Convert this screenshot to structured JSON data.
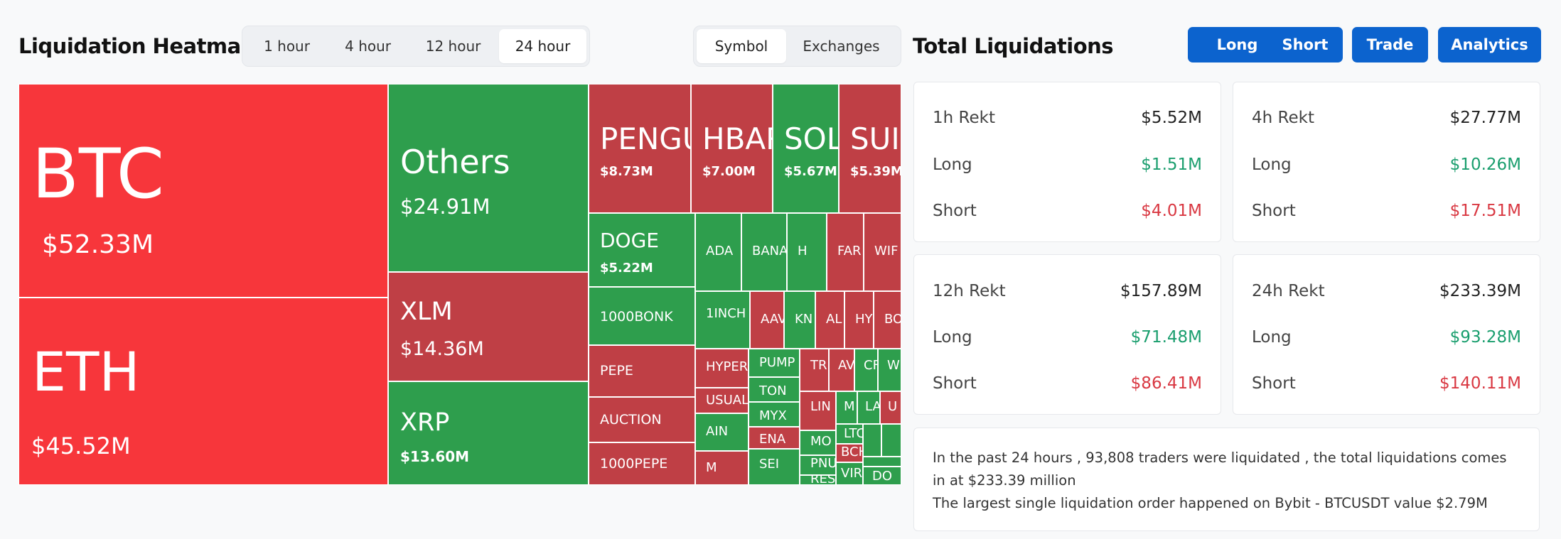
{
  "heatmap": {
    "title": "Liquidation Heatmap",
    "time_tabs": [
      "1 hour",
      "4 hour",
      "12 hour",
      "24 hour"
    ],
    "active_time_tab": "24 hour",
    "view_tabs": [
      "Symbol",
      "Exchanges"
    ],
    "active_view_tab": "Symbol",
    "colors": {
      "short_dominant": "#f7363b",
      "short": "#bf3f45",
      "long": "#2e9e4d"
    },
    "tiles": [
      {
        "symbol": "BTC",
        "value": "$52.33M",
        "color": "bigred"
      },
      {
        "symbol": "ETH",
        "value": "$45.52M",
        "color": "bigred"
      },
      {
        "symbol": "Others",
        "value": "$24.91M",
        "color": "green"
      },
      {
        "symbol": "XLM",
        "value": "$14.36M",
        "color": "red"
      },
      {
        "symbol": "XRP",
        "value": "$13.60M",
        "color": "green"
      },
      {
        "symbol": "PENGU",
        "value": "$8.73M",
        "color": "red"
      },
      {
        "symbol": "HBAR",
        "value": "$7.00M",
        "color": "red"
      },
      {
        "symbol": "SOL",
        "value": "$5.67M",
        "color": "green"
      },
      {
        "symbol": "SUI",
        "value": "$5.39M",
        "color": "red"
      },
      {
        "symbol": "DOGE",
        "value": "$5.22M",
        "color": "green"
      },
      {
        "symbol": "1000BONK",
        "value": "",
        "color": "green"
      },
      {
        "symbol": "PEPE",
        "value": "",
        "color": "red"
      },
      {
        "symbol": "AUCTION",
        "value": "",
        "color": "red"
      },
      {
        "symbol": "1000PEPE",
        "value": "",
        "color": "red"
      },
      {
        "symbol": "ADA",
        "value": "",
        "color": "green"
      },
      {
        "symbol": "BANA",
        "value": "",
        "color": "green"
      },
      {
        "symbol": "H",
        "value": "",
        "color": "green"
      },
      {
        "symbol": "FAR",
        "value": "",
        "color": "red"
      },
      {
        "symbol": "WIF",
        "value": "",
        "color": "red"
      },
      {
        "symbol": "1INCH",
        "value": "",
        "color": "green"
      },
      {
        "symbol": "AAV",
        "value": "",
        "color": "red"
      },
      {
        "symbol": "KN",
        "value": "",
        "color": "green"
      },
      {
        "symbol": "AL",
        "value": "",
        "color": "red"
      },
      {
        "symbol": "HY",
        "value": "",
        "color": "red"
      },
      {
        "symbol": "BO",
        "value": "",
        "color": "red"
      },
      {
        "symbol": "HYPER",
        "value": "",
        "color": "red"
      },
      {
        "symbol": "USUAL",
        "value": "",
        "color": "red"
      },
      {
        "symbol": "AIN",
        "value": "",
        "color": "green"
      },
      {
        "symbol": "M",
        "value": "",
        "color": "red"
      },
      {
        "symbol": "PUMP",
        "value": "",
        "color": "green"
      },
      {
        "symbol": "TON",
        "value": "",
        "color": "green"
      },
      {
        "symbol": "MYX",
        "value": "",
        "color": "green"
      },
      {
        "symbol": "ENA",
        "value": "",
        "color": "red"
      },
      {
        "symbol": "SEI",
        "value": "",
        "color": "green"
      },
      {
        "symbol": "TR",
        "value": "",
        "color": "red"
      },
      {
        "symbol": "AV",
        "value": "",
        "color": "red"
      },
      {
        "symbol": "CF",
        "value": "",
        "color": "green"
      },
      {
        "symbol": "W",
        "value": "",
        "color": "green"
      },
      {
        "symbol": "LIN",
        "value": "",
        "color": "red"
      },
      {
        "symbol": "M",
        "value": "",
        "color": "green"
      },
      {
        "symbol": "LA",
        "value": "",
        "color": "green"
      },
      {
        "symbol": "U",
        "value": "",
        "color": "red"
      },
      {
        "symbol": "MO",
        "value": "",
        "color": "green"
      },
      {
        "symbol": "LTC",
        "value": "",
        "color": "green"
      },
      {
        "symbol": "",
        "value": "",
        "color": "green"
      },
      {
        "symbol": "",
        "value": "",
        "color": "green"
      },
      {
        "symbol": "PNU",
        "value": "",
        "color": "green"
      },
      {
        "symbol": "BCH",
        "value": "",
        "color": "red"
      },
      {
        "symbol": "",
        "value": "",
        "color": "green"
      },
      {
        "symbol": "RES",
        "value": "",
        "color": "green"
      },
      {
        "symbol": "VIR",
        "value": "",
        "color": "green"
      },
      {
        "symbol": "DO",
        "value": "",
        "color": "green"
      }
    ]
  },
  "totals": {
    "title": "Total Liquidations",
    "buttons": [
      "Long",
      "Short",
      "Trade",
      "Analytics"
    ],
    "cards": [
      {
        "label": "1h Rekt",
        "total": "$5.52M",
        "long_label": "Long",
        "long": "$1.51M",
        "short_label": "Short",
        "short": "$4.01M"
      },
      {
        "label": "4h Rekt",
        "total": "$27.77M",
        "long_label": "Long",
        "long": "$10.26M",
        "short_label": "Short",
        "short": "$17.51M"
      },
      {
        "label": "12h Rekt",
        "total": "$157.89M",
        "long_label": "Long",
        "long": "$71.48M",
        "short_label": "Short",
        "short": "$86.41M"
      },
      {
        "label": "24h Rekt",
        "total": "$233.39M",
        "long_label": "Long",
        "long": "$93.28M",
        "short_label": "Short",
        "short": "$140.11M"
      }
    ],
    "summary_line1": "In the past 24 hours , 93,808 traders were liquidated , the total liquidations comes in at $233.39 million",
    "summary_line2": "The largest single liquidation order happened on Bybit - BTCUSDT value $2.79M"
  }
}
